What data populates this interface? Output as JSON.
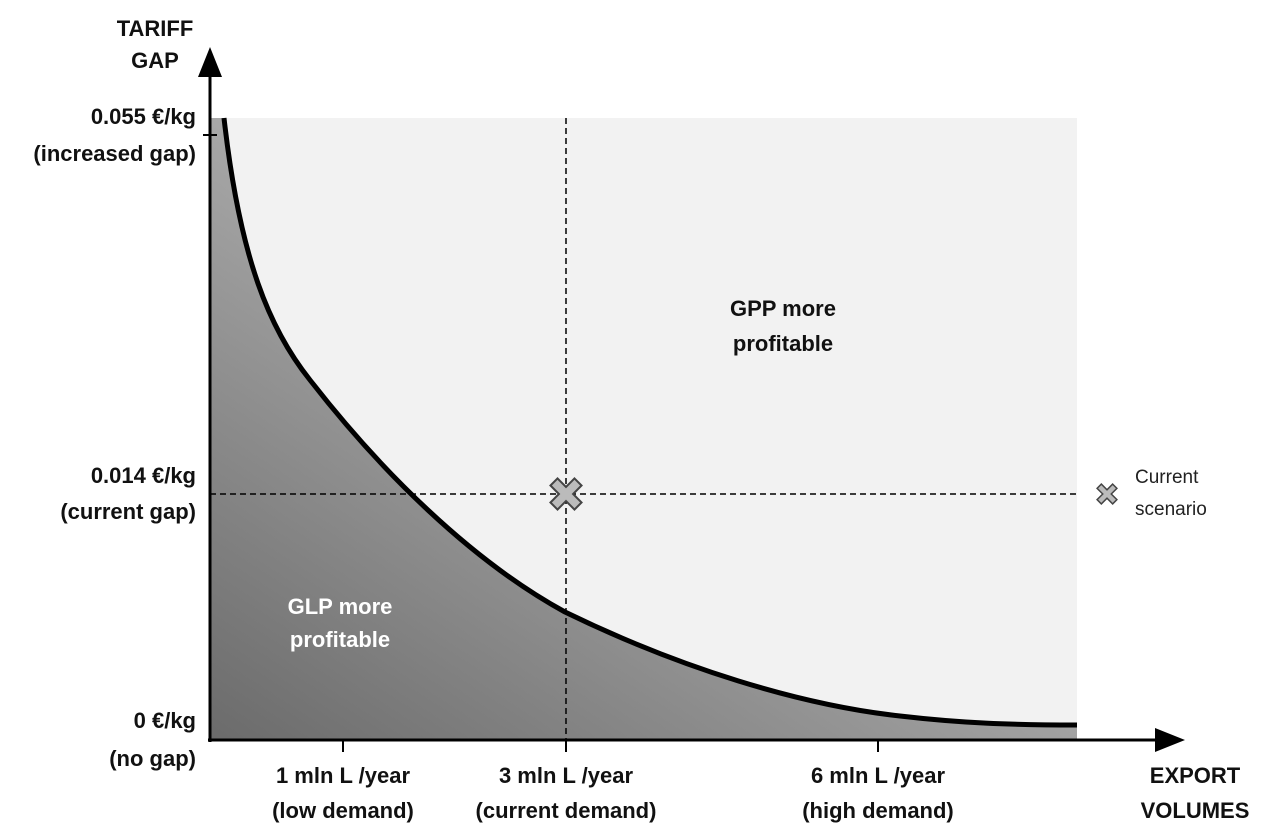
{
  "y_axis": {
    "title": [
      "TARIFF",
      "GAP"
    ],
    "ticks": [
      [
        "0.055 €/kg",
        "(increased gap)"
      ],
      [
        "0.014 €/kg",
        "(current gap)"
      ],
      [
        "0 €/kg",
        "(no gap)"
      ]
    ]
  },
  "x_axis": {
    "title": [
      "EXPORT",
      "VOLUMES"
    ],
    "ticks": [
      [
        "1 mln L /year",
        "(low demand)"
      ],
      [
        "3 mln L /year",
        "(current demand)"
      ],
      [
        "6 mln L /year",
        "(high demand)"
      ]
    ]
  },
  "regions": {
    "upper": [
      "GPP more",
      "profitable"
    ],
    "lower": [
      "GLP more",
      "profitable"
    ]
  },
  "legend": [
    "Current",
    "scenario"
  ]
}
